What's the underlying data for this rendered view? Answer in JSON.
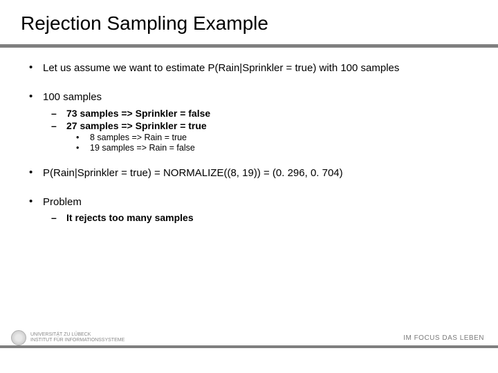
{
  "title": "Rejection Sampling Example",
  "bullets": {
    "b1": "Let us assume we want to estimate P(Rain|Sprinkler = true) with 100 samples",
    "b2": "100 samples",
    "b2_1": "73 samples => Sprinkler = false",
    "b2_2": "27 samples => Sprinkler = true",
    "b2_2_1": "8 samples => Rain = true",
    "b2_2_2": "19 samples =>  Rain = false",
    "b3": "P(Rain|Sprinkler = true) = NORMALIZE((8, 19)) = (0. 296, 0. 704)",
    "b4": "Problem",
    "b4_1": "It rejects too many samples"
  },
  "footer": {
    "uni_line1": "UNIVERSITÄT ZU LÜBECK",
    "uni_line2": "INSTITUT FÜR INFORMATIONSSYSTEME",
    "motto": "IM FOCUS DAS LEBEN"
  },
  "colors": {
    "underline": "#7f7f7f",
    "text": "#000000",
    "footer_text": "#7a7a7a"
  }
}
